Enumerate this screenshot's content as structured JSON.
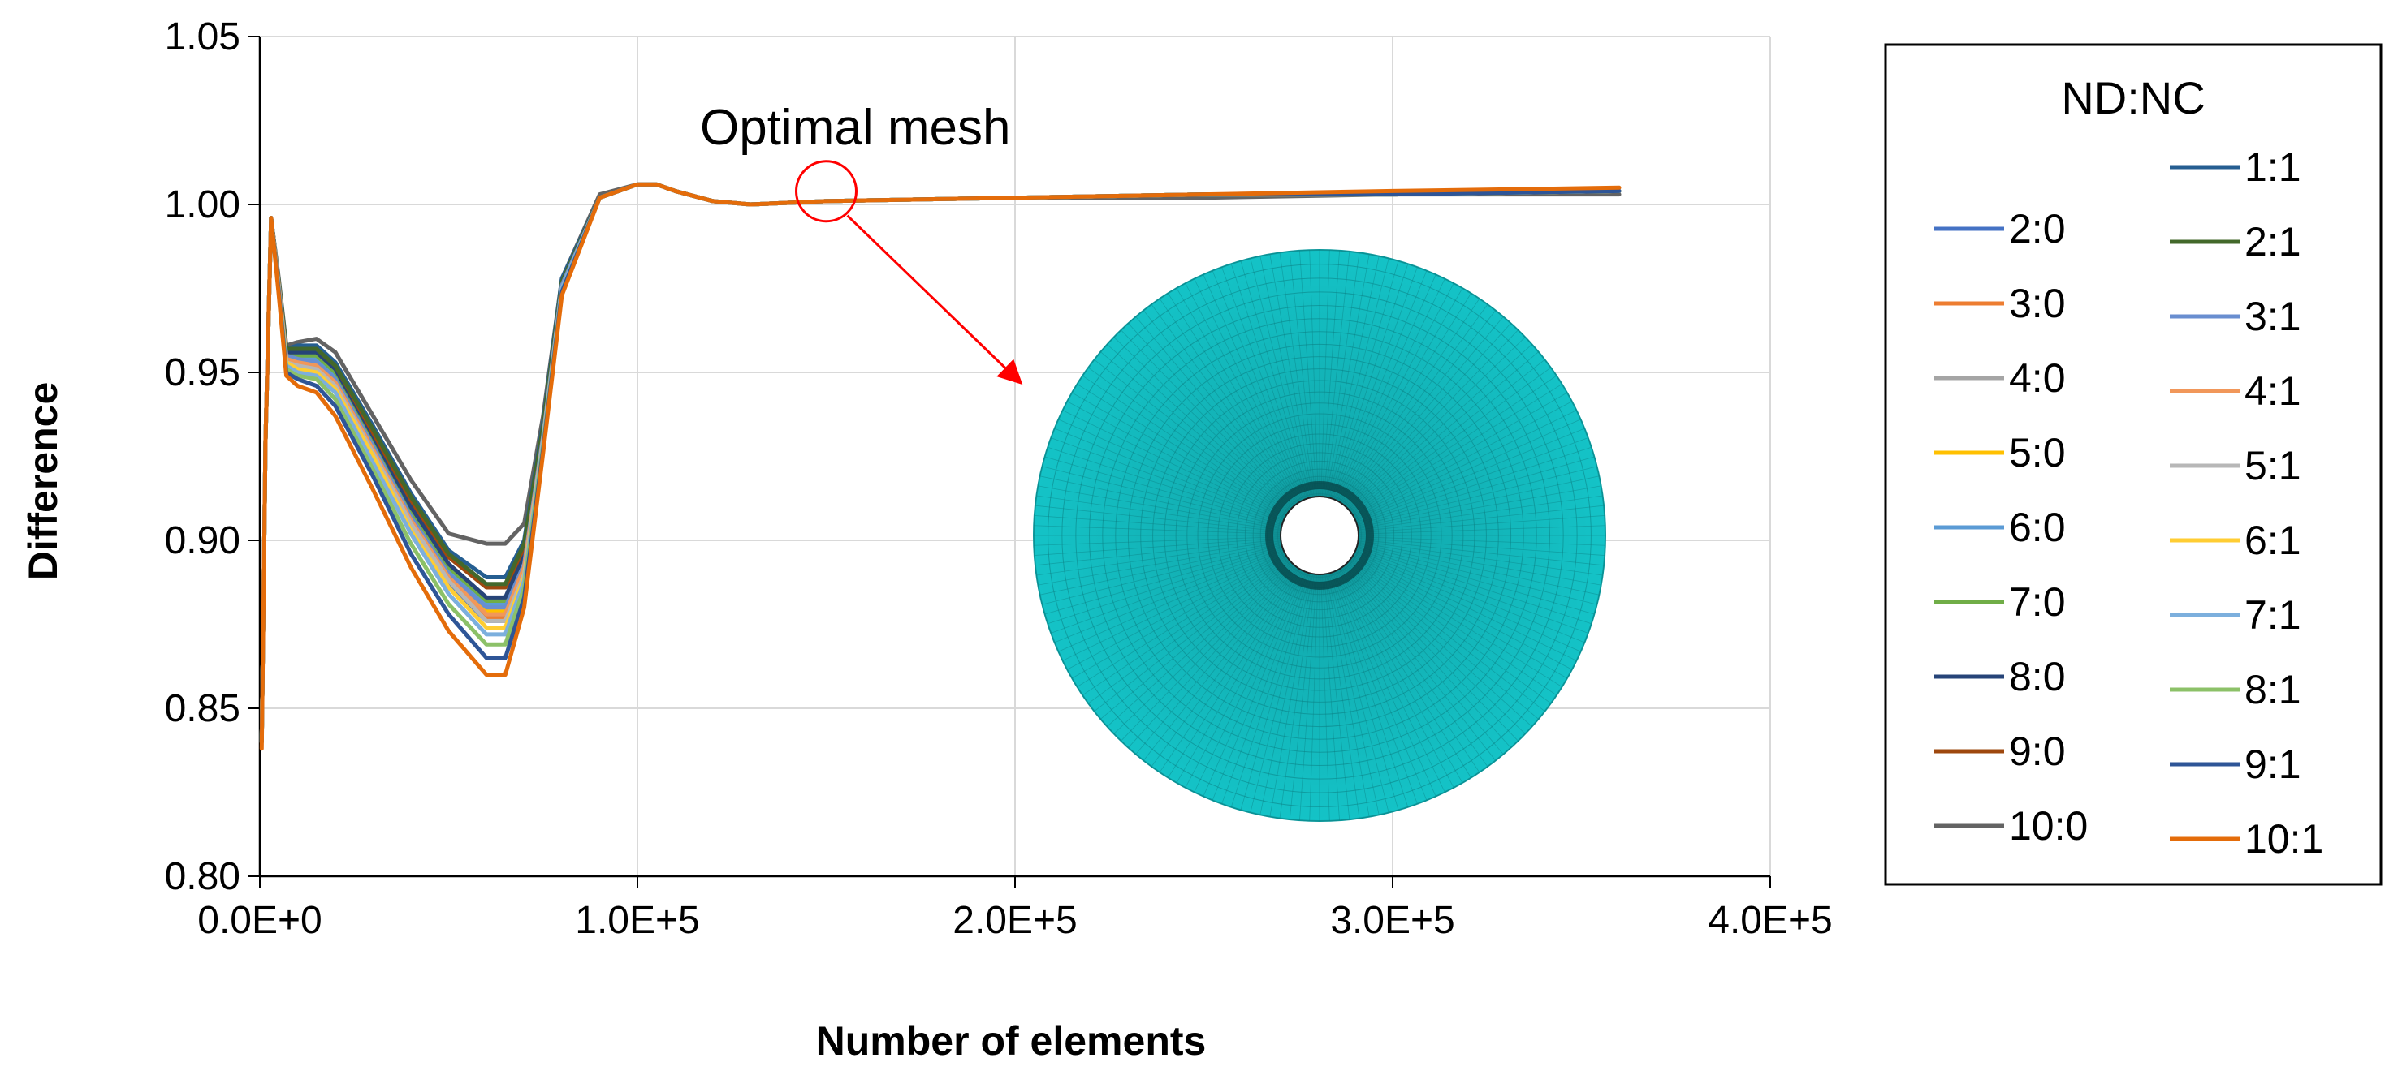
{
  "chart_data": {
    "type": "line",
    "xlabel": "Number of elements",
    "ylabel": "Difference",
    "xlim": [
      0,
      400000
    ],
    "ylim": [
      0.8,
      1.05
    ],
    "x_ticks": [
      "0.0E+0",
      "1.0E+5",
      "2.0E+5",
      "3.0E+5",
      "4.0E+5"
    ],
    "y_ticks": [
      "0.80",
      "0.85",
      "0.90",
      "0.95",
      "1.00",
      "1.05"
    ],
    "grid": true,
    "legend_title": "ND:NC",
    "legend_placement": "right",
    "annotation": "Optimal mesh",
    "annotation_x": 150000,
    "annotation_y": 1.002,
    "x": [
      500,
      1500,
      3000,
      5000,
      7000,
      10000,
      15000,
      20000,
      30000,
      40000,
      50000,
      60000,
      65000,
      70000,
      75000,
      80000,
      90000,
      100000,
      105000,
      110000,
      120000,
      130000,
      150000,
      200000,
      250000,
      300000,
      360000
    ],
    "series": [
      {
        "name": "2:0",
        "color": "#4472C4",
        "values": [
          0.84,
          0.93,
          0.996,
          0.975,
          0.953,
          0.952,
          0.951,
          0.945,
          0.925,
          0.904,
          0.887,
          0.876,
          0.876,
          0.89,
          0.93,
          0.975,
          1.002,
          1.006,
          1.006,
          1.004,
          1.001,
          1.0,
          1.001,
          1.002,
          1.003,
          1.003,
          1.004
        ]
      },
      {
        "name": "3:0",
        "color": "#ED7D31",
        "values": [
          0.84,
          0.93,
          0.996,
          0.975,
          0.954,
          0.953,
          0.952,
          0.946,
          0.926,
          0.905,
          0.888,
          0.877,
          0.877,
          0.891,
          0.93,
          0.975,
          1.002,
          1.006,
          1.006,
          1.004,
          1.001,
          1.0,
          1.001,
          1.002,
          1.003,
          1.003,
          1.004
        ]
      },
      {
        "name": "4:0",
        "color": "#A5A5A5",
        "values": [
          0.84,
          0.93,
          0.996,
          0.976,
          0.954,
          0.953,
          0.952,
          0.947,
          0.927,
          0.906,
          0.889,
          0.878,
          0.878,
          0.892,
          0.931,
          0.976,
          1.002,
          1.006,
          1.006,
          1.004,
          1.001,
          1.0,
          1.001,
          1.002,
          1.003,
          1.003,
          1.004
        ]
      },
      {
        "name": "5:0",
        "color": "#FFC000",
        "values": [
          0.84,
          0.93,
          0.996,
          0.976,
          0.955,
          0.954,
          0.953,
          0.948,
          0.928,
          0.907,
          0.89,
          0.879,
          0.879,
          0.893,
          0.931,
          0.976,
          1.002,
          1.006,
          1.006,
          1.004,
          1.001,
          1.0,
          1.001,
          1.002,
          1.003,
          1.003,
          1.004
        ]
      },
      {
        "name": "6:0",
        "color": "#5B9BD5",
        "values": [
          0.84,
          0.93,
          0.996,
          0.976,
          0.955,
          0.955,
          0.954,
          0.949,
          0.929,
          0.908,
          0.891,
          0.881,
          0.881,
          0.894,
          0.932,
          0.976,
          1.002,
          1.006,
          1.006,
          1.004,
          1.001,
          1.0,
          1.001,
          1.002,
          1.003,
          1.003,
          1.004
        ]
      },
      {
        "name": "7:0",
        "color": "#70AD47",
        "values": [
          0.84,
          0.93,
          0.996,
          0.977,
          0.956,
          0.955,
          0.955,
          0.95,
          0.93,
          0.909,
          0.892,
          0.882,
          0.882,
          0.895,
          0.932,
          0.977,
          1.002,
          1.006,
          1.006,
          1.004,
          1.001,
          1.0,
          1.001,
          1.002,
          1.003,
          1.003,
          1.004
        ]
      },
      {
        "name": "8:0",
        "color": "#264478",
        "values": [
          0.84,
          0.93,
          0.996,
          0.977,
          0.956,
          0.956,
          0.956,
          0.951,
          0.931,
          0.91,
          0.893,
          0.883,
          0.883,
          0.896,
          0.933,
          0.977,
          1.002,
          1.006,
          1.006,
          1.004,
          1.001,
          1.0,
          1.001,
          1.002,
          1.003,
          1.003,
          1.004
        ]
      },
      {
        "name": "9:0",
        "color": "#9E480E",
        "values": [
          0.84,
          0.93,
          0.996,
          0.977,
          0.957,
          0.957,
          0.957,
          0.952,
          0.932,
          0.912,
          0.895,
          0.886,
          0.886,
          0.898,
          0.934,
          0.977,
          1.002,
          1.006,
          1.006,
          1.004,
          1.001,
          1.0,
          1.001,
          1.002,
          1.003,
          1.003,
          1.004
        ]
      },
      {
        "name": "10:0",
        "color": "#636363",
        "values": [
          0.84,
          0.93,
          0.996,
          0.978,
          0.958,
          0.959,
          0.96,
          0.956,
          0.937,
          0.918,
          0.902,
          0.899,
          0.899,
          0.905,
          0.937,
          0.978,
          1.003,
          1.006,
          1.006,
          1.004,
          1.001,
          1.0,
          1.001,
          1.002,
          1.002,
          1.003,
          1.003
        ]
      },
      {
        "name": "1:1",
        "color": "#255E91",
        "values": [
          0.84,
          0.93,
          0.996,
          0.977,
          0.957,
          0.958,
          0.958,
          0.953,
          0.934,
          0.914,
          0.897,
          0.889,
          0.889,
          0.9,
          0.935,
          0.978,
          1.002,
          1.006,
          1.006,
          1.004,
          1.001,
          1.0,
          1.001,
          1.002,
          1.003,
          1.003,
          1.004
        ]
      },
      {
        "name": "2:1",
        "color": "#43682B",
        "values": [
          0.84,
          0.93,
          0.996,
          0.977,
          0.957,
          0.957,
          0.957,
          0.952,
          0.933,
          0.913,
          0.896,
          0.887,
          0.887,
          0.899,
          0.934,
          0.977,
          1.002,
          1.006,
          1.006,
          1.004,
          1.001,
          1.0,
          1.001,
          1.002,
          1.003,
          1.003,
          1.004
        ]
      },
      {
        "name": "3:1",
        "color": "#698ED0",
        "values": [
          0.84,
          0.93,
          0.996,
          0.976,
          0.955,
          0.954,
          0.953,
          0.948,
          0.928,
          0.907,
          0.89,
          0.88,
          0.88,
          0.893,
          0.931,
          0.976,
          1.002,
          1.006,
          1.006,
          1.004,
          1.001,
          1.0,
          1.001,
          1.002,
          1.003,
          1.003,
          1.004
        ]
      },
      {
        "name": "4:1",
        "color": "#F1975A",
        "values": [
          0.84,
          0.93,
          0.996,
          0.976,
          0.954,
          0.953,
          0.952,
          0.947,
          0.927,
          0.906,
          0.889,
          0.878,
          0.878,
          0.892,
          0.93,
          0.975,
          1.002,
          1.006,
          1.006,
          1.004,
          1.001,
          1.0,
          1.001,
          1.002,
          1.003,
          1.003,
          1.004
        ]
      },
      {
        "name": "5:1",
        "color": "#B7B7B7",
        "values": [
          0.84,
          0.93,
          0.996,
          0.975,
          0.953,
          0.952,
          0.951,
          0.946,
          0.926,
          0.905,
          0.888,
          0.876,
          0.876,
          0.89,
          0.93,
          0.975,
          1.002,
          1.006,
          1.006,
          1.004,
          1.001,
          1.0,
          1.001,
          1.002,
          1.003,
          1.003,
          1.004
        ]
      },
      {
        "name": "6:1",
        "color": "#FFCD33",
        "values": [
          0.84,
          0.93,
          0.996,
          0.975,
          0.953,
          0.951,
          0.95,
          0.945,
          0.925,
          0.903,
          0.886,
          0.874,
          0.874,
          0.889,
          0.929,
          0.975,
          1.002,
          1.006,
          1.006,
          1.004,
          1.001,
          1.0,
          1.001,
          1.002,
          1.003,
          1.003,
          1.004
        ]
      },
      {
        "name": "7:1",
        "color": "#7CAFDD",
        "values": [
          0.84,
          0.93,
          0.996,
          0.975,
          0.952,
          0.95,
          0.949,
          0.944,
          0.923,
          0.902,
          0.884,
          0.872,
          0.872,
          0.888,
          0.929,
          0.975,
          1.002,
          1.006,
          1.006,
          1.004,
          1.001,
          1.0,
          1.001,
          1.002,
          1.003,
          1.003,
          1.004
        ]
      },
      {
        "name": "8:1",
        "color": "#8CC168",
        "values": [
          0.84,
          0.93,
          0.996,
          0.974,
          0.951,
          0.949,
          0.948,
          0.942,
          0.921,
          0.899,
          0.881,
          0.869,
          0.869,
          0.886,
          0.928,
          0.974,
          1.002,
          1.006,
          1.006,
          1.004,
          1.001,
          1.0,
          1.001,
          1.002,
          1.003,
          1.003,
          1.004
        ]
      },
      {
        "name": "9:1",
        "color": "#2E5597",
        "values": [
          0.84,
          0.93,
          0.996,
          0.974,
          0.95,
          0.948,
          0.946,
          0.94,
          0.919,
          0.896,
          0.878,
          0.865,
          0.865,
          0.883,
          0.927,
          0.974,
          1.002,
          1.006,
          1.006,
          1.004,
          1.001,
          1.0,
          1.001,
          1.002,
          1.003,
          1.003,
          1.004
        ]
      },
      {
        "name": "10:1",
        "color": "#E46C0A",
        "values": [
          0.838,
          0.93,
          0.996,
          0.973,
          0.949,
          0.946,
          0.944,
          0.937,
          0.915,
          0.892,
          0.873,
          0.86,
          0.86,
          0.88,
          0.926,
          0.973,
          1.002,
          1.006,
          1.006,
          1.004,
          1.001,
          1.0,
          1.001,
          1.002,
          1.003,
          1.004,
          1.005
        ]
      }
    ],
    "legend_left": [
      "2:0",
      "3:0",
      "4:0",
      "5:0",
      "6:0",
      "7:0",
      "8:0",
      "9:0",
      "10:0"
    ],
    "legend_right": [
      "1:1",
      "2:1",
      "3:1",
      "4:1",
      "5:1",
      "6:1",
      "7:1",
      "8:1",
      "9:1",
      "10:1"
    ],
    "inset_color": "#11C0C4",
    "arrow_color": "#FF0000"
  }
}
